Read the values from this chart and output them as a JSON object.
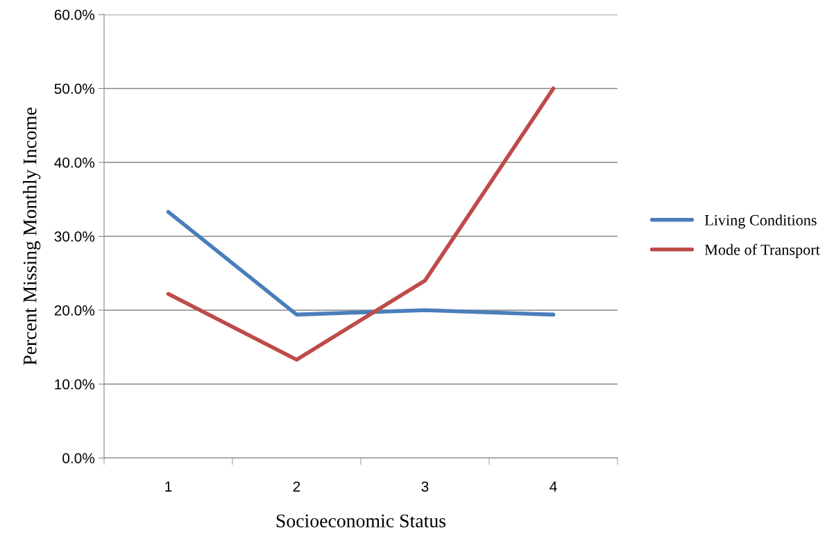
{
  "chart_data": {
    "type": "line",
    "xlabel": "Socioeconomic Status",
    "ylabel": "Percent Missing Monthly Income",
    "categories": [
      "1",
      "2",
      "3",
      "4"
    ],
    "series": [
      {
        "name": "Living Conditions",
        "color": "#4a7ebb",
        "values": [
          33.3,
          19.4,
          20.0,
          19.4
        ]
      },
      {
        "name": "Mode of Transport",
        "color": "#be4b48",
        "values": [
          22.2,
          13.3,
          24.0,
          50.0
        ]
      }
    ],
    "ylim": [
      0,
      60
    ],
    "yticks": [
      {
        "value": 0,
        "label": "0.0%"
      },
      {
        "value": 10,
        "label": "10.0%"
      },
      {
        "value": 20,
        "label": "20.0%"
      },
      {
        "value": 30,
        "label": "30.0%"
      },
      {
        "value": 40,
        "label": "40.0%"
      },
      {
        "value": 50,
        "label": "50.0%"
      },
      {
        "value": 60,
        "label": "60.0%"
      }
    ],
    "grid": "y",
    "legend": "right",
    "marker": "none",
    "line_style": "solid"
  }
}
